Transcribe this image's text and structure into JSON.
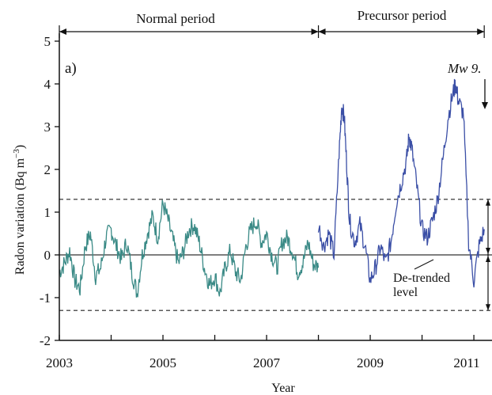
{
  "chart_data": {
    "type": "line",
    "panel_label": "a)",
    "xlabel": "Year",
    "ylabel": "Radon variation (Bq m",
    "ylabel_sup": "−3",
    "ylabel_close": ")",
    "xlim": [
      2003,
      2011.35
    ],
    "ylim": [
      -2,
      5
    ],
    "x_ticks": [
      2003,
      2004,
      2005,
      2006,
      2007,
      2008,
      2009,
      2010,
      2011
    ],
    "x_tick_labels": [
      {
        "value": 2003,
        "label": "2003"
      },
      {
        "value": 2005,
        "label": "2005"
      },
      {
        "value": 2007,
        "label": "2007"
      },
      {
        "value": 2009,
        "label": "2009"
      },
      {
        "value": 2011,
        "label": "2011"
      }
    ],
    "y_ticks": [
      {
        "value": 5,
        "label": "5"
      },
      {
        "value": 4,
        "label": "4"
      },
      {
        "value": 3,
        "label": "3"
      },
      {
        "value": 2,
        "label": "2"
      },
      {
        "value": 1,
        "label": "1"
      },
      {
        "value": 0,
        "label": "0"
      },
      {
        "value": -1,
        "label": "-1"
      },
      {
        "value": -2,
        "label": "-2"
      }
    ],
    "periods": [
      {
        "label": "Normal period",
        "start": 2003,
        "end": 2008
      },
      {
        "label": "Precursor period",
        "start": 2008,
        "end": 2011.2
      }
    ],
    "thresholds": [
      1.3,
      -1.3
    ],
    "zero_line": 0,
    "annotations": {
      "event_label": "Mw 9.",
      "event_x": 2011.2,
      "detrended_label_line1": "De-trended",
      "detrended_label_line2": "level"
    },
    "series": [
      {
        "color": "#3a8a86",
        "x": [
          2003.0,
          2003.1,
          2003.2,
          2003.3,
          2003.4,
          2003.5,
          2003.6,
          2003.7,
          2003.8,
          2003.9,
          2004.0,
          2004.1,
          2004.2,
          2004.3,
          2004.4,
          2004.5,
          2004.6,
          2004.7,
          2004.8,
          2004.9,
          2005.0,
          2005.1,
          2005.2,
          2005.3,
          2005.4,
          2005.5,
          2005.6,
          2005.7,
          2005.8,
          2005.9,
          2006.0,
          2006.1,
          2006.2,
          2006.3,
          2006.4,
          2006.5,
          2006.6,
          2006.7,
          2006.8,
          2006.9,
          2007.0,
          2007.1,
          2007.2,
          2007.3,
          2007.4,
          2007.5,
          2007.6,
          2007.7,
          2007.8,
          2007.9,
          2008.0
        ],
        "y": [
          -0.4,
          -0.2,
          0.1,
          -0.6,
          -0.8,
          0.2,
          0.5,
          -0.5,
          -0.3,
          0.4,
          0.6,
          0.2,
          -0.1,
          0.3,
          -0.4,
          -0.9,
          0.0,
          0.5,
          0.9,
          0.4,
          1.2,
          0.8,
          0.3,
          -0.2,
          0.1,
          0.6,
          0.7,
          0.3,
          -0.3,
          -0.7,
          -0.5,
          -0.9,
          -0.3,
          0.1,
          -0.4,
          -0.6,
          0.2,
          0.6,
          0.8,
          0.3,
          0.5,
          0.0,
          -0.3,
          0.3,
          0.4,
          0.1,
          -0.4,
          -0.2,
          0.3,
          -0.2,
          -0.3
        ]
      },
      {
        "color": "#3b4fa6",
        "x": [
          2008.0,
          2008.1,
          2008.2,
          2008.3,
          2008.4,
          2008.45,
          2008.5,
          2008.55,
          2008.6,
          2008.7,
          2008.8,
          2008.9,
          2009.0,
          2009.1,
          2009.2,
          2009.3,
          2009.4,
          2009.5,
          2009.6,
          2009.7,
          2009.75,
          2009.8,
          2009.9,
          2010.0,
          2010.1,
          2010.2,
          2010.3,
          2010.4,
          2010.5,
          2010.6,
          2010.65,
          2010.7,
          2010.8,
          2010.9,
          2011.0,
          2011.1,
          2011.2
        ],
        "y": [
          0.7,
          0.2,
          0.5,
          0.0,
          2.4,
          3.5,
          3.2,
          2.0,
          0.8,
          0.3,
          0.7,
          0.2,
          -0.6,
          -0.3,
          0.2,
          -0.2,
          0.3,
          1.2,
          1.7,
          2.2,
          2.8,
          2.5,
          1.6,
          0.6,
          0.4,
          0.8,
          1.3,
          2.2,
          3.2,
          3.8,
          4.0,
          3.6,
          3.3,
          0.3,
          -0.6,
          0.2,
          0.6
        ]
      }
    ]
  }
}
